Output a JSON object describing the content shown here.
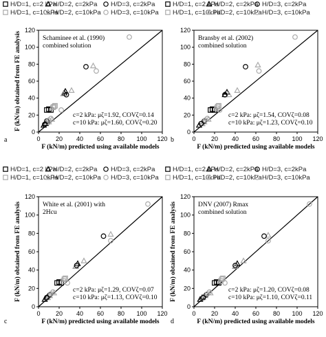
{
  "legend_rows": [
    [
      {
        "symbol": "square",
        "filled": false,
        "color": "#000000",
        "text": "H/D=1, c=2 kPa"
      },
      {
        "symbol": "triangle",
        "filled": false,
        "color": "#000000",
        "text": "H/D=2, c=2kPa"
      },
      {
        "symbol": "circle",
        "filled": false,
        "color": "#000000",
        "text": "H/D=3, c=2kPa"
      }
    ],
    [
      {
        "symbol": "square",
        "filled": false,
        "color": "#aaaaaa",
        "text": "H/D=1, c=10kPa"
      },
      {
        "symbol": "triangle",
        "filled": false,
        "color": "#aaaaaa",
        "text": "H/D=2, c=10kPa"
      },
      {
        "symbol": "circle",
        "filled": false,
        "color": "#aaaaaa",
        "text": "H/D=3, c=10kPa"
      }
    ]
  ],
  "colors": {
    "c2": "#000000",
    "c10": "#aaaaaa"
  },
  "chart_data": [
    {
      "type": "scatter",
      "panel": "a",
      "xlabel": "F (kN/m) predicted using available models",
      "ylabel": "F (kN/m) obtained from FE analysis",
      "xlim": [
        0,
        120
      ],
      "ylim": [
        0,
        120
      ],
      "xticks": [
        0,
        20,
        40,
        60,
        80,
        100,
        120
      ],
      "yticks": [
        0,
        20,
        40,
        60,
        80,
        100,
        120
      ],
      "reference_line": "1:1",
      "annotation_lines": [
        "Schaminee et al. (1990)",
        "combined solution"
      ],
      "stats_lines": [
        "c=2 kPa: μζ=1.92, COVζ=0.14",
        "c=10 kPa: μζ=1.60, COVζ=0.20"
      ],
      "series": [
        {
          "name": "H/D=1, c=2 kPa",
          "marker": "square",
          "color": "#000000",
          "x": [
            8,
            10,
            12
          ],
          "y": [
            26,
            27,
            26
          ]
        },
        {
          "name": "H/D=1, c=10kPa",
          "marker": "square",
          "color": "#aaaaaa",
          "x": [
            14,
            16,
            15
          ],
          "y": [
            29,
            31,
            30
          ]
        },
        {
          "name": "H/D=2, c=2kPa",
          "marker": "triangle",
          "color": "#000000",
          "x": [
            5,
            7,
            25,
            26
          ],
          "y": [
            8,
            10,
            46,
            48
          ]
        },
        {
          "name": "H/D=2, c=10kPa",
          "marker": "triangle",
          "color": "#aaaaaa",
          "x": [
            8,
            10,
            13,
            24,
            32,
            53
          ],
          "y": [
            11,
            12,
            15,
            45,
            49,
            78
          ]
        },
        {
          "name": "H/D=3, c=2kPa",
          "marker": "circle",
          "color": "#000000",
          "x": [
            6,
            8,
            27,
            46
          ],
          "y": [
            9,
            13,
            44,
            77
          ]
        },
        {
          "name": "H/D=3, c=10kPa",
          "marker": "circle",
          "color": "#aaaaaa",
          "x": [
            10,
            12,
            22,
            56,
            88
          ],
          "y": [
            14,
            16,
            26,
            72,
            112
          ]
        }
      ]
    },
    {
      "type": "scatter",
      "panel": "b",
      "xlabel": "F (kN/m) predicted using available models",
      "ylabel": "",
      "xlim": [
        0,
        120
      ],
      "ylim": [
        0,
        120
      ],
      "xticks": [
        0,
        20,
        40,
        60,
        80,
        100,
        120
      ],
      "yticks": [
        0,
        20,
        40,
        60,
        80,
        100,
        120
      ],
      "reference_line": "1:1",
      "annotation_lines": [
        "Bransby et al. (2002)",
        "combined solution"
      ],
      "stats_lines": [
        "c=2 kPa: μζ=1.54, COVζ=0.08",
        "c=10 kPa: μζ=1.23, COVζ=0.10"
      ],
      "series": [
        {
          "name": "H/D=1, c=2 kPa",
          "marker": "square",
          "color": "#000000",
          "x": [
            16,
            18,
            20
          ],
          "y": [
            26,
            27,
            26
          ]
        },
        {
          "name": "H/D=1, c=10kPa",
          "marker": "square",
          "color": "#aaaaaa",
          "x": [
            22,
            24,
            23
          ],
          "y": [
            28,
            31,
            30
          ]
        },
        {
          "name": "H/D=2, c=2kPa",
          "marker": "triangle",
          "color": "#000000",
          "x": [
            5,
            8,
            30,
            32
          ],
          "y": [
            8,
            10,
            44,
            47
          ]
        },
        {
          "name": "H/D=2, c=10kPa",
          "marker": "triangle",
          "color": "#aaaaaa",
          "x": [
            8,
            10,
            14,
            34,
            42,
            62
          ],
          "y": [
            10,
            12,
            15,
            44,
            49,
            79
          ]
        },
        {
          "name": "H/D=3, c=2kPa",
          "marker": "circle",
          "color": "#000000",
          "x": [
            7,
            10,
            30,
            50
          ],
          "y": [
            10,
            13,
            44,
            77
          ]
        },
        {
          "name": "H/D=3, c=10kPa",
          "marker": "circle",
          "color": "#aaaaaa",
          "x": [
            11,
            13,
            25,
            63,
            98
          ],
          "y": [
            14,
            16,
            26,
            72,
            112
          ]
        }
      ]
    },
    {
      "type": "scatter",
      "panel": "c",
      "xlabel": "F (kN/m) predicted using available models",
      "ylabel": "F (kN/m) obtained from FE analysis",
      "xlim": [
        0,
        120
      ],
      "ylim": [
        0,
        120
      ],
      "xticks": [
        0,
        20,
        40,
        60,
        80,
        100,
        120
      ],
      "yticks": [
        0,
        20,
        40,
        60,
        80,
        100,
        120
      ],
      "reference_line": "1:1",
      "annotation_lines": [
        "White et al. (2001) with",
        "2Hcu"
      ],
      "stats_lines": [
        "c=2 kPa: μζ=1.29, COVζ=0.07",
        "c=10 kPa: μζ=1.13, COVζ=0.10"
      ],
      "series": [
        {
          "name": "H/D=1, c=2 kPa",
          "marker": "square",
          "color": "#000000",
          "x": [
            18,
            20,
            22
          ],
          "y": [
            26,
            27,
            26
          ]
        },
        {
          "name": "H/D=1, c=10kPa",
          "marker": "square",
          "color": "#aaaaaa",
          "x": [
            24,
            26,
            25
          ],
          "y": [
            28,
            31,
            30
          ]
        },
        {
          "name": "H/D=2, c=2kPa",
          "marker": "triangle",
          "color": "#000000",
          "x": [
            6,
            8,
            36,
            38
          ],
          "y": [
            8,
            10,
            44,
            47
          ]
        },
        {
          "name": "H/D=2, c=10kPa",
          "marker": "triangle",
          "color": "#aaaaaa",
          "x": [
            9,
            11,
            15,
            36,
            44,
            70
          ],
          "y": [
            10,
            12,
            15,
            44,
            50,
            79
          ]
        },
        {
          "name": "H/D=3, c=2kPa",
          "marker": "circle",
          "color": "#000000",
          "x": [
            8,
            11,
            37,
            63
          ],
          "y": [
            10,
            13,
            45,
            77
          ]
        },
        {
          "name": "H/D=3, c=10kPa",
          "marker": "circle",
          "color": "#aaaaaa",
          "x": [
            12,
            14,
            28,
            70,
            106
          ],
          "y": [
            14,
            16,
            26,
            72,
            112
          ]
        }
      ]
    },
    {
      "type": "scatter",
      "panel": "d",
      "xlabel": "F (kN/m) predicted using available models",
      "ylabel": "F (kN/m) obtained from FE analysis",
      "xlim": [
        0,
        120
      ],
      "ylim": [
        0,
        120
      ],
      "xticks": [
        0,
        20,
        40,
        60,
        80,
        100,
        120
      ],
      "yticks": [
        0,
        20,
        40,
        60,
        80,
        100,
        120
      ],
      "reference_line": "1:1",
      "annotation_lines": [
        "DNV (2007) Rmax",
        "combined solution"
      ],
      "stats_lines": [
        "c=2 kPa: μζ=1.20, COVζ=0.08",
        "c=10 kPa: μζ=1.10, COVζ=0.11"
      ],
      "series": [
        {
          "name": "H/D=1, c=2 kPa",
          "marker": "square",
          "color": "#000000",
          "x": [
            20,
            22,
            24
          ],
          "y": [
            26,
            27,
            26
          ]
        },
        {
          "name": "H/D=1, c=10kPa",
          "marker": "square",
          "color": "#aaaaaa",
          "x": [
            26,
            28,
            27
          ],
          "y": [
            28,
            31,
            30
          ]
        },
        {
          "name": "H/D=2, c=2kPa",
          "marker": "triangle",
          "color": "#000000",
          "x": [
            6,
            8,
            40,
            42
          ],
          "y": [
            8,
            10,
            44,
            47
          ]
        },
        {
          "name": "H/D=2, c=10kPa",
          "marker": "triangle",
          "color": "#aaaaaa",
          "x": [
            9,
            11,
            16,
            40,
            48,
            72
          ],
          "y": [
            10,
            12,
            15,
            44,
            50,
            78
          ]
        },
        {
          "name": "H/D=3, c=2kPa",
          "marker": "circle",
          "color": "#000000",
          "x": [
            9,
            12,
            40,
            68
          ],
          "y": [
            10,
            13,
            45,
            77
          ]
        },
        {
          "name": "H/D=3, c=10kPa",
          "marker": "circle",
          "color": "#aaaaaa",
          "x": [
            13,
            15,
            30,
            72,
            112
          ],
          "y": [
            14,
            16,
            26,
            72,
            112
          ]
        }
      ]
    }
  ]
}
